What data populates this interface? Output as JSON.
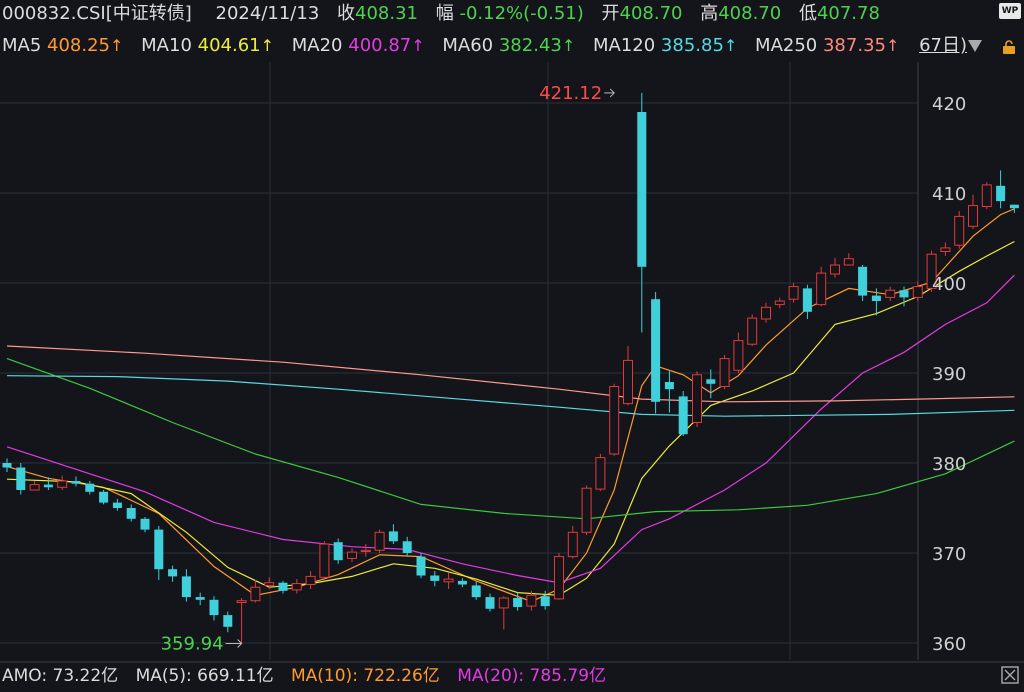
{
  "header": {
    "symbol": "000832.CSI[中证转债]",
    "date": "2024/11/13",
    "close_label": "收",
    "close": "408.31",
    "change_label": "幅",
    "change": "-0.12%(-0.51)",
    "open_label": "开",
    "open": "408.70",
    "high_label": "高",
    "high": "408.70",
    "low_label": "低",
    "low": "407.78"
  },
  "ma_bar": {
    "ma5_label": "MA5",
    "ma5": "408.25",
    "ma10_label": "MA10",
    "ma10": "404.61",
    "ma20_label": "MA20",
    "ma20": "400.87",
    "ma60_label": "MA60",
    "ma60": "382.43",
    "ma120_label": "MA120",
    "ma120": "385.85",
    "ma250_label": "MA250",
    "ma250": "387.35",
    "up_arrow": "↑",
    "period": "67日)"
  },
  "footer": {
    "amo": "AMO: 73.22亿",
    "ma5": "MA(5): 669.11亿",
    "ma10": "MA(10): 722.26亿",
    "ma20": "MA(20): 785.79亿"
  },
  "badge": "WP",
  "colors": {
    "up": "#e23a3a",
    "down": "#3fd0dc",
    "ma5": "#ff9b2e",
    "ma10": "#ecec3a",
    "ma20": "#e23ce2",
    "ma60": "#3cc83c",
    "ma120": "#58d8e0",
    "ma250": "#ff9a8a"
  },
  "chart_data": {
    "type": "candlestick",
    "title": "000832.CSI[中证转债]",
    "ylim": [
      358,
      425
    ],
    "y_ticks": [
      360,
      370,
      380,
      390,
      400,
      410,
      420
    ],
    "annotations": [
      {
        "label": "421.12",
        "index": 44,
        "value": 421.12,
        "kind": "high"
      },
      {
        "label": "359.94",
        "index": 17,
        "value": 359.94,
        "kind": "low"
      }
    ],
    "candles": [
      [
        380,
        380.5,
        379,
        379.5
      ],
      [
        379.5,
        380,
        376.5,
        377
      ],
      [
        377,
        378,
        377,
        377.6
      ],
      [
        377.6,
        378.4,
        377,
        377.3
      ],
      [
        377.3,
        378.6,
        377,
        378
      ],
      [
        378,
        378.5,
        377.4,
        377.7
      ],
      [
        377.7,
        378,
        376.5,
        376.8
      ],
      [
        376.8,
        377,
        375.4,
        375.6
      ],
      [
        375.6,
        376,
        374.7,
        375
      ],
      [
        375,
        375.4,
        373.5,
        373.8
      ],
      [
        373.8,
        374,
        372.3,
        372.6
      ],
      [
        372.6,
        373,
        367,
        368.2
      ],
      [
        368.2,
        368.6,
        366.8,
        367.4
      ],
      [
        367.4,
        368.2,
        364.6,
        365.1
      ],
      [
        365.1,
        365.6,
        364.2,
        364.8
      ],
      [
        364.8,
        365.2,
        362.5,
        363.1
      ],
      [
        363.1,
        363.5,
        361.2,
        361.8
      ],
      [
        364.5,
        365,
        359.94,
        364.7
      ],
      [
        364.7,
        367,
        364.5,
        366.2
      ],
      [
        366.4,
        367.3,
        366,
        366.7
      ],
      [
        366.7,
        366.9,
        365.5,
        365.8
      ],
      [
        365.9,
        367.1,
        365.5,
        366.6
      ],
      [
        366.5,
        368,
        366,
        367.4
      ],
      [
        367.3,
        371.3,
        367,
        371
      ],
      [
        371.2,
        371.6,
        368.8,
        369.2
      ],
      [
        369.4,
        370.5,
        369,
        370.1
      ],
      [
        370.2,
        371,
        369.6,
        370.3
      ],
      [
        370.3,
        372.6,
        370,
        372.3
      ],
      [
        372.4,
        373.2,
        371,
        371.3
      ],
      [
        371.3,
        371.8,
        369.6,
        370
      ],
      [
        369.6,
        370,
        367.2,
        367.5
      ],
      [
        367.5,
        368,
        366.3,
        366.9
      ],
      [
        366.8,
        367.8,
        366,
        367.1
      ],
      [
        366.9,
        367.2,
        366.2,
        366.5
      ],
      [
        366.4,
        366.8,
        364.8,
        365.1
      ],
      [
        365.1,
        365.5,
        363.5,
        363.8
      ],
      [
        363.9,
        365.2,
        361.5,
        365
      ],
      [
        365,
        365.6,
        363.6,
        364
      ],
      [
        364.1,
        365.8,
        363.6,
        365.3
      ],
      [
        365.2,
        365.8,
        363.7,
        364.1
      ],
      [
        364.9,
        370,
        364.8,
        369.6
      ],
      [
        369.6,
        373,
        369.4,
        372.3
      ],
      [
        372.3,
        377.5,
        372,
        377.2
      ],
      [
        377.1,
        381,
        376.9,
        380.6
      ],
      [
        381,
        388.8,
        380.8,
        388.5
      ],
      [
        386.6,
        393,
        386.4,
        391.4
      ],
      [
        419,
        421.12,
        394.5,
        401.8
      ],
      [
        398.2,
        399,
        385.5,
        386.8
      ],
      [
        389,
        390.2,
        385.6,
        388.2
      ],
      [
        387.4,
        388,
        383,
        383.2
      ],
      [
        384.5,
        390.2,
        384,
        389.8
      ],
      [
        389.3,
        390.4,
        387.2,
        388.8
      ],
      [
        388.5,
        392,
        388.2,
        391.6
      ],
      [
        390.3,
        394.5,
        390,
        393.6
      ],
      [
        393.2,
        396.5,
        393,
        396.1
      ],
      [
        396,
        397.8,
        395.6,
        397.3
      ],
      [
        397.6,
        398.4,
        397.2,
        398
      ],
      [
        398.2,
        400,
        397.8,
        399.6
      ],
      [
        399.4,
        399.8,
        396,
        396.8
      ],
      [
        397.6,
        401.8,
        397.4,
        401.1
      ],
      [
        401,
        402.8,
        400.6,
        402
      ],
      [
        402,
        403.3,
        402,
        402.7
      ],
      [
        401.8,
        402,
        398,
        398.6
      ],
      [
        398.6,
        399.4,
        396.4,
        398
      ],
      [
        398.4,
        399.6,
        398,
        399.2
      ],
      [
        399.2,
        399.6,
        397.4,
        398.4
      ],
      [
        398.4,
        400.2,
        398,
        399.6
      ],
      [
        399.4,
        403.6,
        399,
        403.2
      ],
      [
        403.5,
        404.5,
        403,
        403.9
      ],
      [
        404.2,
        408,
        403.8,
        407.4
      ],
      [
        406.3,
        409.8,
        406,
        408.6
      ],
      [
        408.5,
        411.2,
        408.2,
        410.9
      ],
      [
        410.8,
        412.5,
        408.3,
        409.1
      ],
      [
        408.7,
        408.7,
        407.78,
        408.31
      ]
    ],
    "ma_series": [
      {
        "name": "MA5",
        "points": [
          [
            0,
            379.6
          ],
          [
            3,
            378.3
          ],
          [
            7,
            377.3
          ],
          [
            11,
            374.4
          ],
          [
            15,
            368.5
          ],
          [
            18,
            365.3
          ],
          [
            21,
            366.2
          ],
          [
            24,
            367.6
          ],
          [
            27,
            369.8
          ],
          [
            30,
            369.6
          ],
          [
            34,
            366.9
          ],
          [
            38,
            364.6
          ],
          [
            40,
            366
          ],
          [
            42,
            370
          ],
          [
            44,
            377
          ],
          [
            46,
            388.6
          ],
          [
            47,
            390.8
          ],
          [
            49,
            389.8
          ],
          [
            51,
            387.8
          ],
          [
            53,
            389.7
          ],
          [
            55,
            393.1
          ],
          [
            58,
            397.2
          ],
          [
            61,
            399.4
          ],
          [
            64,
            398.7
          ],
          [
            67,
            400.1
          ],
          [
            70,
            405.2
          ],
          [
            72,
            407.6
          ],
          [
            73,
            408.25
          ]
        ]
      },
      {
        "name": "MA10",
        "points": [
          [
            0,
            378.2
          ],
          [
            5,
            377.9
          ],
          [
            9,
            376.6
          ],
          [
            13,
            372.3
          ],
          [
            16,
            368.4
          ],
          [
            19,
            366.2
          ],
          [
            22,
            366.6
          ],
          [
            25,
            367.4
          ],
          [
            28,
            368.8
          ],
          [
            31,
            368.3
          ],
          [
            34,
            367.1
          ],
          [
            37,
            365.6
          ],
          [
            40,
            365.3
          ],
          [
            42,
            367.2
          ],
          [
            44,
            371
          ],
          [
            46,
            378.3
          ],
          [
            48,
            381.9
          ],
          [
            51,
            386.4
          ],
          [
            54,
            388
          ],
          [
            57,
            390
          ],
          [
            60,
            395.4
          ],
          [
            63,
            396.6
          ],
          [
            66,
            398.5
          ],
          [
            69,
            401.3
          ],
          [
            71,
            403
          ],
          [
            73,
            404.61
          ]
        ]
      },
      {
        "name": "MA20",
        "points": [
          [
            0,
            381.8
          ],
          [
            5,
            379.3
          ],
          [
            10,
            376.8
          ],
          [
            15,
            373.4
          ],
          [
            20,
            371.5
          ],
          [
            25,
            370.7
          ],
          [
            29,
            370.4
          ],
          [
            33,
            368.8
          ],
          [
            37,
            367.5
          ],
          [
            40,
            366.7
          ],
          [
            43,
            368.3
          ],
          [
            46,
            372.6
          ],
          [
            48,
            373.8
          ],
          [
            52,
            377
          ],
          [
            55,
            380
          ],
          [
            59,
            386
          ],
          [
            62,
            390
          ],
          [
            65,
            392.3
          ],
          [
            68,
            395.4
          ],
          [
            71,
            397.8
          ],
          [
            73,
            400.87
          ]
        ]
      },
      {
        "name": "MA60",
        "points": [
          [
            0,
            391.6
          ],
          [
            6,
            388.3
          ],
          [
            12,
            384.5
          ],
          [
            18,
            381
          ],
          [
            24,
            378.4
          ],
          [
            30,
            375.4
          ],
          [
            36,
            374.4
          ],
          [
            42,
            373.8
          ],
          [
            47,
            374.6
          ],
          [
            53,
            374.8
          ],
          [
            58,
            375.3
          ],
          [
            63,
            376.6
          ],
          [
            68,
            378.8
          ],
          [
            73,
            382.43
          ]
        ]
      },
      {
        "name": "MA120",
        "points": [
          [
            0,
            389.7
          ],
          [
            8,
            389.6
          ],
          [
            16,
            389.1
          ],
          [
            24,
            388.2
          ],
          [
            32,
            387.2
          ],
          [
            40,
            386.2
          ],
          [
            46,
            385.4
          ],
          [
            52,
            385.2
          ],
          [
            58,
            385.3
          ],
          [
            64,
            385.4
          ],
          [
            70,
            385.7
          ],
          [
            73,
            385.85
          ]
        ]
      },
      {
        "name": "MA250",
        "points": [
          [
            0,
            393
          ],
          [
            10,
            392.2
          ],
          [
            20,
            391.2
          ],
          [
            30,
            389.8
          ],
          [
            40,
            388.2
          ],
          [
            46,
            387.1
          ],
          [
            52,
            386.8
          ],
          [
            60,
            386.9
          ],
          [
            66,
            387.1
          ],
          [
            73,
            387.35
          ]
        ]
      }
    ]
  }
}
